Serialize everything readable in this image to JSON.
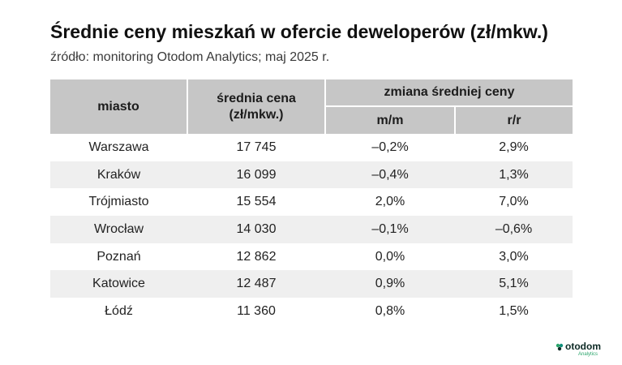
{
  "title": "Średnie ceny mieszkań w ofercie deweloperów (zł/mkw.)",
  "subtitle": "źródło: monitoring Otodom Analytics; maj 2025 r.",
  "table": {
    "headers": {
      "city": "miasto",
      "price_line1": "średnia cena",
      "price_line2": "(zł/mkw.)",
      "change": "zmiana średniej ceny",
      "mm": "m/m",
      "rr": "r/r"
    },
    "rows": [
      {
        "city": "Warszawa",
        "price": "17 745",
        "mm": "–0,2%",
        "rr": "2,9%"
      },
      {
        "city": "Kraków",
        "price": "16 099",
        "mm": "–0,4%",
        "rr": "1,3%"
      },
      {
        "city": "Trójmiasto",
        "price": "15 554",
        "mm": "2,0%",
        "rr": "7,0%"
      },
      {
        "city": "Wrocław",
        "price": "14 030",
        "mm": "–0,1%",
        "rr": "–0,6%"
      },
      {
        "city": "Poznań",
        "price": "12 862",
        "mm": "0,0%",
        "rr": "3,0%"
      },
      {
        "city": "Katowice",
        "price": "12 487",
        "mm": "0,9%",
        "rr": "5,1%"
      },
      {
        "city": "Łódź",
        "price": "11 360",
        "mm": "0,8%",
        "rr": "1,5%"
      }
    ]
  },
  "logo": {
    "name": "otodom",
    "sub": "Analytics",
    "colors": {
      "green": "#2aa56b",
      "teal": "#0f8f7a",
      "dark": "#0d2a25"
    }
  },
  "colors": {
    "header_bg": "#c6c6c6",
    "stripe_bg": "#efefef"
  }
}
